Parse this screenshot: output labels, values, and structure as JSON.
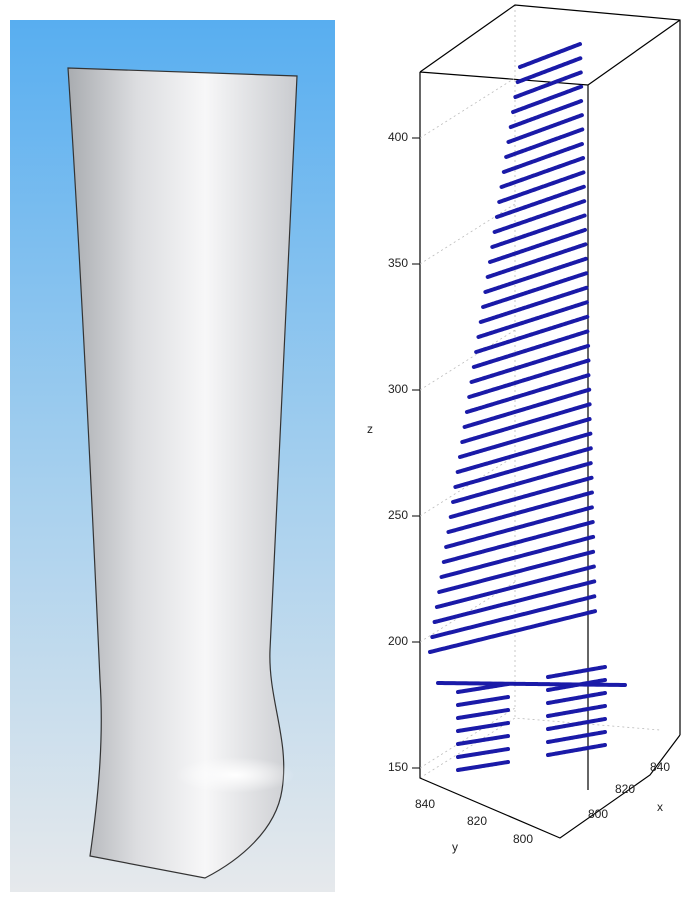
{
  "plot": {
    "z_label": "z",
    "y_label": "y",
    "x_label": "x",
    "z_ticks": [
      "400",
      "350",
      "300",
      "250",
      "200",
      "150"
    ],
    "y_ticks": [
      "840",
      "820",
      "800"
    ],
    "x_ticks": [
      "800",
      "820",
      "840"
    ]
  }
}
